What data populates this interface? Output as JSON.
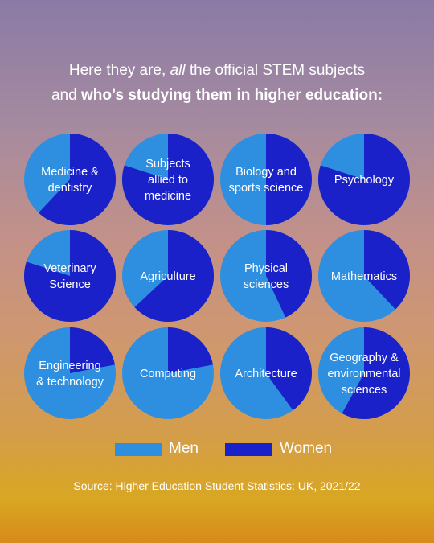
{
  "headline": {
    "line1_prefix": "Here they are, ",
    "line1_em": "all",
    "line1_suffix": " the official STEM subjects",
    "line2_prefix": "and ",
    "line2_bold": "who’s studying them in higher education:"
  },
  "chart_data": {
    "type": "pie",
    "series_names": [
      "Men",
      "Women"
    ],
    "colors": {
      "men": "#2e8fe0",
      "women": "#1a21c8"
    },
    "charts": [
      {
        "label": [
          "Medicine &",
          "dentistry"
        ],
        "men": 38,
        "women": 62
      },
      {
        "label": [
          "Subjects",
          "allied to",
          "medicine"
        ],
        "men": 20,
        "women": 80
      },
      {
        "label": [
          "Biology and",
          "sports science"
        ],
        "men": 50,
        "women": 50
      },
      {
        "label": [
          "Psychology"
        ],
        "men": 20,
        "women": 80
      },
      {
        "label": [
          "Veterinary",
          "Science"
        ],
        "men": 20,
        "women": 80
      },
      {
        "label": [
          "Agriculture"
        ],
        "men": 37,
        "women": 63
      },
      {
        "label": [
          "Physical",
          "sciences"
        ],
        "men": 57,
        "women": 43
      },
      {
        "label": [
          "Mathematics"
        ],
        "men": 62,
        "women": 38
      },
      {
        "label": [
          "Engineering",
          "& technology"
        ],
        "men": 78,
        "women": 22
      },
      {
        "label": [
          "Computing"
        ],
        "men": 78,
        "women": 22
      },
      {
        "label": [
          "Architecture"
        ],
        "men": 60,
        "women": 40
      },
      {
        "label": [
          "Geography &",
          "environmental",
          "sciences"
        ],
        "men": 42,
        "women": 58
      }
    ]
  },
  "legend": {
    "men_label": "Men",
    "women_label": "Women"
  },
  "source": "Source: Higher Education Student Statistics: UK, 2021/22"
}
